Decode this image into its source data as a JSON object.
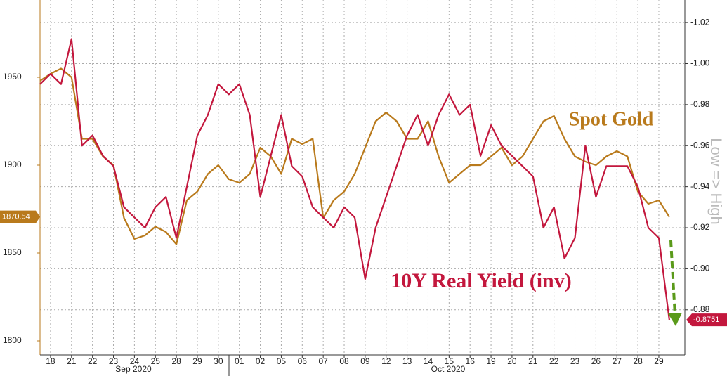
{
  "chart_data": {
    "type": "line",
    "annotations": [
      "Spot Gold",
      "10Y Real Yield (inv)"
    ],
    "y2_axis_label": "Low => High",
    "x_groups": [
      "Sep 2020",
      "Oct 2020"
    ],
    "xlim": [
      -0.5,
      30.24
    ],
    "xticks": [
      {
        "value": 0,
        "label": "18"
      },
      {
        "value": 1,
        "label": "21"
      },
      {
        "value": 2,
        "label": "22"
      },
      {
        "value": 3,
        "label": "23"
      },
      {
        "value": 4,
        "label": "24"
      },
      {
        "value": 5,
        "label": "25"
      },
      {
        "value": 6,
        "label": "28"
      },
      {
        "value": 7,
        "label": "29"
      },
      {
        "value": 8,
        "label": "30"
      },
      {
        "value": 9,
        "label": "01"
      },
      {
        "value": 10,
        "label": "02"
      },
      {
        "value": 11,
        "label": "05"
      },
      {
        "value": 12,
        "label": "06"
      },
      {
        "value": 13,
        "label": "07"
      },
      {
        "value": 14,
        "label": "08"
      },
      {
        "value": 15,
        "label": "09"
      },
      {
        "value": 16,
        "label": "12"
      },
      {
        "value": 17,
        "label": "13"
      },
      {
        "value": 18,
        "label": "14"
      },
      {
        "value": 19,
        "label": "15"
      },
      {
        "value": 20,
        "label": "16"
      },
      {
        "value": 21,
        "label": "19"
      },
      {
        "value": 22,
        "label": "20"
      },
      {
        "value": 23,
        "label": "21"
      },
      {
        "value": 24,
        "label": "22"
      },
      {
        "value": 25,
        "label": "23"
      },
      {
        "value": 26,
        "label": "26"
      },
      {
        "value": 27,
        "label": "27"
      },
      {
        "value": 28,
        "label": "28"
      },
      {
        "value": 29,
        "label": "29"
      }
    ],
    "ylim": [
      1792,
      1994
    ],
    "yticks": [
      1800,
      1850,
      1900,
      1950
    ],
    "y2lim": [
      -1.031,
      -0.858
    ],
    "y2_inverted": true,
    "y2ticks": [
      -1.02,
      {
        "value": -1,
        "label": "-1.00"
      },
      -0.98,
      -0.96,
      -0.94,
      -0.92,
      {
        "value": -0.9,
        "label": "-0.90"
      },
      -0.88
    ],
    "grid": true,
    "x": [
      -0.5,
      0,
      0.5,
      1,
      1.5,
      2,
      2.5,
      3,
      3.5,
      4,
      4.5,
      5,
      5.5,
      6,
      6.5,
      7,
      7.5,
      8,
      8.5,
      9,
      9.5,
      10,
      10.5,
      11,
      11.5,
      12,
      12.5,
      13,
      13.5,
      14,
      14.5,
      15,
      15.5,
      16,
      16.5,
      17,
      17.5,
      18,
      18.5,
      19,
      19.5,
      20,
      20.5,
      21,
      21.5,
      22,
      22.5,
      23,
      23.5,
      24,
      24.5,
      25,
      25.5,
      26,
      26.5,
      27,
      27.5,
      28,
      28.5,
      29,
      29.5
    ],
    "series": [
      {
        "name": "Spot Gold",
        "color": "#b97a1c",
        "axis": "y",
        "last_value_label": "1870.54",
        "values": [
          1948,
          1952,
          1955,
          1950,
          1915,
          1915,
          1905,
          1900,
          1870,
          1858,
          1860,
          1865,
          1862,
          1855,
          1880,
          1885,
          1895,
          1900,
          1892,
          1890,
          1895,
          1910,
          1905,
          1895,
          1915,
          1912,
          1915,
          1870,
          1880,
          1885,
          1895,
          1910,
          1925,
          1930,
          1925,
          1915,
          1915,
          1925,
          1905,
          1890,
          1895,
          1900,
          1900,
          1905,
          1910,
          1900,
          1905,
          1915,
          1925,
          1928,
          1915,
          1905,
          1902,
          1900,
          1905,
          1908,
          1905,
          1885,
          1878,
          1880,
          1870.54
        ]
      },
      {
        "name": "10Y Real Yield (inv)",
        "color": "#c3173d",
        "axis": "y2",
        "last_value_label": "-0.8751",
        "values": [
          -0.99,
          -0.995,
          -0.99,
          -1.012,
          -0.96,
          -0.965,
          -0.955,
          -0.95,
          -0.93,
          -0.925,
          -0.92,
          -0.93,
          -0.935,
          -0.915,
          -0.94,
          -0.965,
          -0.975,
          -0.99,
          -0.985,
          -0.99,
          -0.975,
          -0.935,
          -0.955,
          -0.975,
          -0.95,
          -0.945,
          -0.93,
          -0.925,
          -0.92,
          -0.93,
          -0.925,
          -0.895,
          -0.92,
          -0.935,
          -0.95,
          -0.965,
          -0.975,
          -0.96,
          -0.975,
          -0.985,
          -0.975,
          -0.98,
          -0.955,
          -0.97,
          -0.96,
          -0.955,
          -0.95,
          -0.945,
          -0.92,
          -0.93,
          -0.905,
          -0.915,
          -0.96,
          -0.935,
          -0.95,
          -0.95,
          -0.95,
          -0.94,
          -0.92,
          -0.915,
          -0.8751
        ]
      }
    ]
  }
}
